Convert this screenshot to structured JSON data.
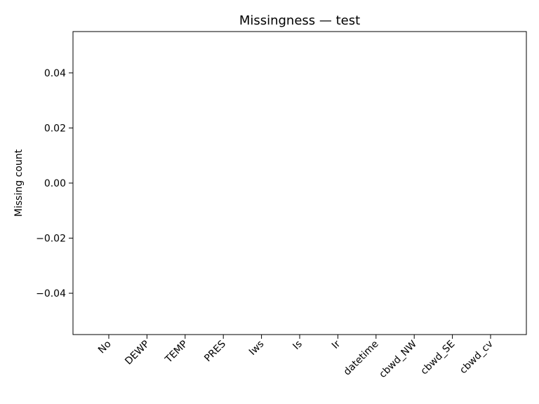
{
  "chart_data": {
    "type": "bar",
    "title": "Missingness — test",
    "xlabel": "",
    "ylabel": "Missing count",
    "categories": [
      "No",
      "DEWP",
      "TEMP",
      "PRES",
      "Iws",
      "Is",
      "Ir",
      "datetime",
      "cbwd_NW",
      "cbwd_SE",
      "cbwd_cv"
    ],
    "values": [
      0,
      0,
      0,
      0,
      0,
      0,
      0,
      0,
      0,
      0,
      0
    ],
    "ylim": [
      -0.055,
      0.055
    ],
    "yticks": [
      -0.04,
      -0.02,
      0.0,
      0.02,
      0.04
    ],
    "ytick_labels": [
      "−0.04",
      "−0.02",
      "0.00",
      "0.02",
      "0.04"
    ],
    "grid": false,
    "bar_color": "#1f77b4"
  }
}
